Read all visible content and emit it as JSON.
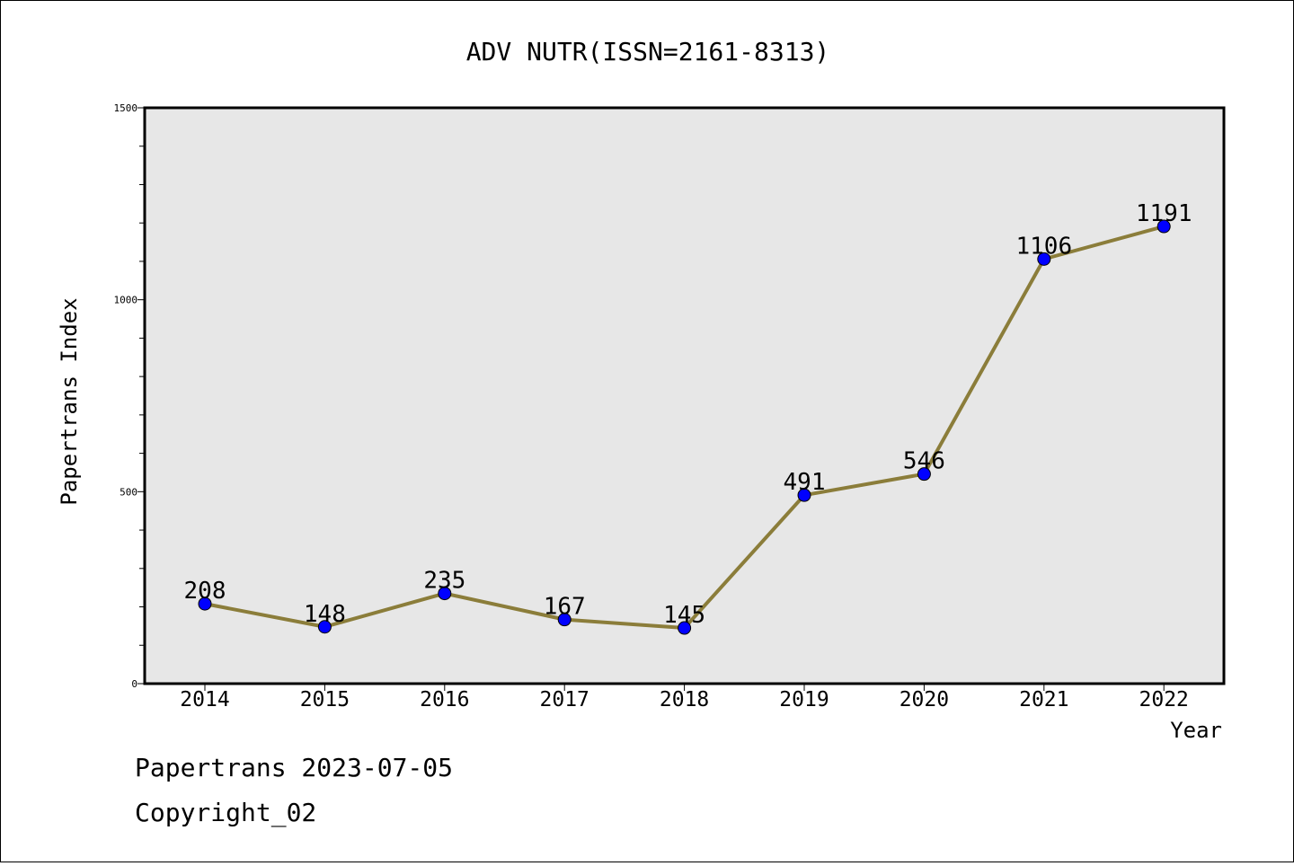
{
  "chart_data": {
    "type": "line",
    "title": "ADV NUTR(ISSN=2161-8313)",
    "xlabel": "Year",
    "ylabel": "Papertrans Index",
    "categories": [
      "2014",
      "2015",
      "2016",
      "2017",
      "2018",
      "2019",
      "2020",
      "2021",
      "2022"
    ],
    "values": [
      208,
      148,
      235,
      167,
      145,
      491,
      546,
      1106,
      1191
    ],
    "ylim": [
      0,
      1500
    ],
    "yticks": [
      0,
      500,
      1000,
      1500
    ],
    "grid": false,
    "line_color": "#8b7d3a",
    "marker_color": "#0000ff",
    "plot_bg": "#e7e7e7"
  },
  "footer": {
    "line1": "Papertrans 2023-07-05",
    "line2": "Copyright_02"
  }
}
